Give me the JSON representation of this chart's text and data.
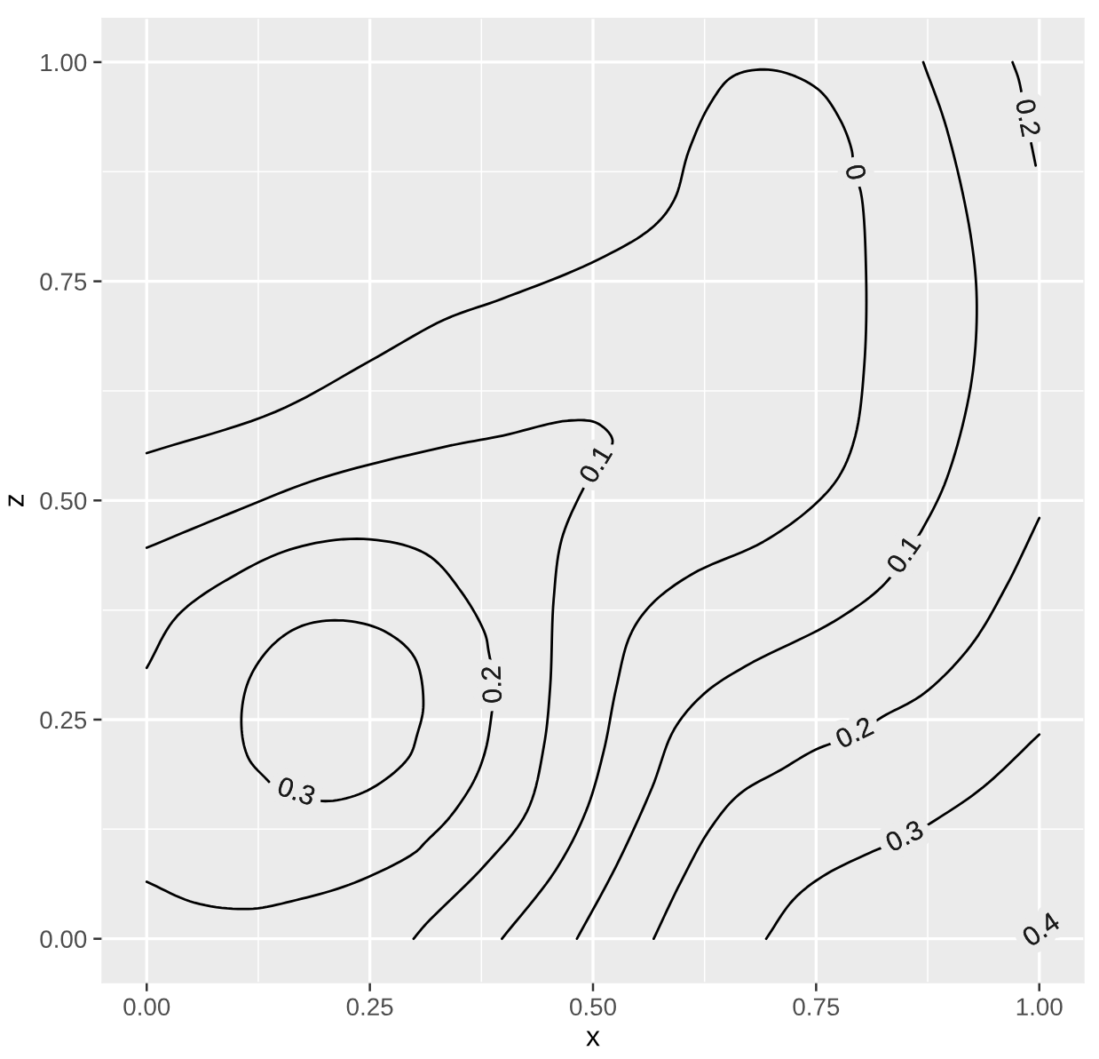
{
  "chart_data": {
    "type": "line",
    "xlabel": "x",
    "ylabel": "z",
    "xlim": [
      -0.05,
      1.05
    ],
    "ylim": [
      -0.05,
      1.05
    ],
    "xticks": [
      {
        "value": 0,
        "label": "0.00"
      },
      0.25,
      {
        "value": 0.5,
        "label": "0.50"
      },
      0.75,
      {
        "value": 1,
        "label": "1.00"
      }
    ],
    "yticks": [
      {
        "value": 0,
        "label": "0.00"
      },
      0.25,
      {
        "value": 0.5,
        "label": "0.50"
      },
      0.75,
      {
        "value": 1,
        "label": "1.00"
      }
    ],
    "grid": true,
    "series": [
      {
        "color": "#000000",
        "x": [
          0,
          0.144,
          0.25,
          0.333,
          0.398,
          0.498,
          0.566,
          0.591,
          0.607,
          0.631,
          0.657,
          0.701,
          0.751,
          0.776,
          0.79,
          0.792,
          0.8,
          0.806,
          0.804,
          0.794,
          0.776,
          0.747,
          0.691,
          0.611,
          0.566,
          0.542,
          0.526,
          0.512,
          0.492,
          0.458,
          0.398
        ],
        "values": [
          0.554,
          0.601,
          0.659,
          0.706,
          0.73,
          0.771,
          0.811,
          0.843,
          0.898,
          0.952,
          0.984,
          0.991,
          0.97,
          0.936,
          0.899,
          0.874,
          0.852,
          0.757,
          0.655,
          0.574,
          0.528,
          0.494,
          0.453,
          0.416,
          0.382,
          0.347,
          0.286,
          0.214,
          0.145,
          0.078,
          0
        ]
      },
      {
        "color": "#000000",
        "x": [
          0,
          0.1,
          0.194,
          0.333,
          0.399,
          0.472,
          0.505,
          0.522,
          0.505,
          0.489,
          0.465,
          0.456,
          0.452,
          0.445,
          0.426,
          0.379,
          0.313,
          0.299
        ],
        "values": [
          0.446,
          0.488,
          0.525,
          0.561,
          0.574,
          0.591,
          0.588,
          0.568,
          0.54,
          0.513,
          0.456,
          0.388,
          0.287,
          0.22,
          0.145,
          0.084,
          0.017,
          0
        ]
      },
      {
        "color": "#000000",
        "x": [
          0,
          0.034,
          0.101,
          0.167,
          0.243,
          0.313,
          0.353,
          0.379,
          0.383,
          0.389,
          0.386,
          0.379,
          0.366,
          0.339,
          0.313,
          0.3,
          0.233,
          0.167,
          0.114,
          0.054,
          0
        ],
        "values": [
          0.309,
          0.368,
          0.416,
          0.446,
          0.456,
          0.439,
          0.395,
          0.348,
          0.328,
          0.29,
          0.253,
          0.213,
          0.179,
          0.138,
          0.111,
          0.098,
          0.064,
          0.044,
          0.034,
          0.041,
          0.065
        ]
      },
      {
        "color": "#000000",
        "x": [
          0.167,
          0.2,
          0.247,
          0.293,
          0.303,
          0.31,
          0.3,
          0.266,
          0.22,
          0.174,
          0.14,
          0.114,
          0.106,
          0.114,
          0.137
        ],
        "values": [
          0.166,
          0.157,
          0.169,
          0.206,
          0.233,
          0.267,
          0.321,
          0.351,
          0.363,
          0.357,
          0.334,
          0.294,
          0.247,
          0.206,
          0.179
        ]
      },
      {
        "color": "#000000",
        "x": [
          0.87,
          0.896,
          0.923,
          0.93,
          0.923,
          0.896,
          0.87,
          0.85,
          0.824,
          0.77,
          0.671,
          0.625,
          0.591,
          0.566,
          0.526,
          0.482
        ],
        "values": [
          1.0,
          0.925,
          0.803,
          0.722,
          0.629,
          0.524,
          0.469,
          0.437,
          0.402,
          0.362,
          0.311,
          0.28,
          0.239,
          0.172,
          0.083,
          0
        ]
      },
      {
        "color": "#000000",
        "x": [
          0.568,
          0.598,
          0.631,
          0.664,
          0.711,
          0.75,
          0.794,
          0.824,
          0.871,
          0.923,
          0.963,
          1.0
        ],
        "values": [
          0,
          0.064,
          0.125,
          0.165,
          0.193,
          0.216,
          0.233,
          0.253,
          0.28,
          0.334,
          0.402,
          0.48
        ]
      },
      {
        "color": "#000000",
        "x": [
          0.694,
          0.724,
          0.757,
          0.81,
          0.85,
          0.883,
          0.936,
          1.0
        ],
        "values": [
          0,
          0.044,
          0.071,
          0.098,
          0.115,
          0.135,
          0.172,
          0.233
        ]
      },
      {
        "color": "#000000",
        "x": [
          0.97,
          0.977,
          0.985,
          0.992,
          0.996
        ],
        "values": [
          1.0,
          0.98,
          0.936,
          0.902,
          0.882
        ]
      }
    ],
    "annotations": [
      {
        "text": "0.3",
        "x": 0.167,
        "y": 0.166
      },
      {
        "text": "0.2",
        "x": 0.389,
        "y": 0.29
      },
      {
        "text": "0.1",
        "x": 0.505,
        "y": 0.54
      },
      {
        "text": "0",
        "x": 0.792,
        "y": 0.874
      },
      {
        "text": "0.2",
        "x": 0.985,
        "y": 0.936
      },
      {
        "text": "0.1",
        "x": 0.85,
        "y": 0.437
      },
      {
        "text": "0.2",
        "x": 0.794,
        "y": 0.233
      },
      {
        "text": "0.3",
        "x": 0.85,
        "y": 0.115
      },
      "0.4"
    ]
  }
}
